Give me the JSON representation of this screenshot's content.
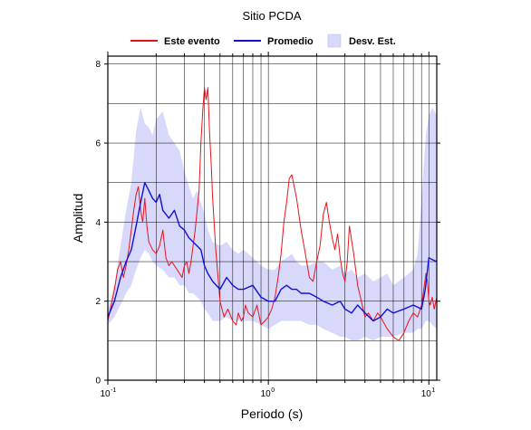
{
  "chart_data": {
    "type": "line",
    "title": "Sitio PCDA",
    "xlabel": "Periodo (s)",
    "ylabel": "Amplitud",
    "xscale": "log",
    "xlim": [
      0.1,
      11.2
    ],
    "ylim": [
      0,
      8.2
    ],
    "xticks": [
      {
        "value": 0.1,
        "base": "10",
        "exp": "-1"
      },
      {
        "value": 1,
        "base": "10",
        "exp": "0"
      },
      {
        "value": 10,
        "base": "10",
        "exp": "1"
      }
    ],
    "yticks": [
      "0",
      "2",
      "4",
      "6",
      "8"
    ],
    "grid": true,
    "legend_position": "top",
    "legend": {
      "event_label": "Este evento",
      "mean_label": "Promedio",
      "std_label": "Desv. Est."
    },
    "colors": {
      "event": "#e8141c",
      "mean": "#1010d8",
      "std_fill": "#d8d8fa"
    },
    "series": [
      {
        "name": "Este evento",
        "x": [
          0.1,
          0.105,
          0.11,
          0.115,
          0.12,
          0.125,
          0.13,
          0.135,
          0.14,
          0.145,
          0.15,
          0.155,
          0.16,
          0.165,
          0.17,
          0.175,
          0.18,
          0.19,
          0.2,
          0.21,
          0.22,
          0.23,
          0.24,
          0.25,
          0.27,
          0.29,
          0.3,
          0.31,
          0.32,
          0.33,
          0.35,
          0.37,
          0.38,
          0.39,
          0.4,
          0.41,
          0.42,
          0.43,
          0.44,
          0.45,
          0.47,
          0.5,
          0.53,
          0.56,
          0.6,
          0.63,
          0.65,
          0.68,
          0.7,
          0.72,
          0.75,
          0.8,
          0.85,
          0.9,
          0.95,
          1.0,
          1.05,
          1.1,
          1.15,
          1.2,
          1.25,
          1.3,
          1.35,
          1.4,
          1.45,
          1.5,
          1.6,
          1.7,
          1.8,
          1.9,
          2.0,
          2.1,
          2.2,
          2.3,
          2.4,
          2.5,
          2.6,
          2.7,
          2.8,
          2.9,
          3.0,
          3.1,
          3.2,
          3.4,
          3.6,
          3.8,
          4.0,
          4.2,
          4.5,
          4.8,
          5.0,
          5.5,
          6.0,
          6.5,
          7.0,
          7.5,
          8.0,
          8.5,
          9.0,
          9.3,
          9.6,
          9.8,
          10.0,
          10.2,
          10.5,
          10.8,
          11.2
        ],
        "values": [
          1.5,
          1.9,
          2.3,
          2.8,
          3.0,
          2.6,
          2.9,
          3.3,
          3.8,
          4.3,
          4.7,
          4.9,
          4.3,
          4.0,
          4.6,
          3.9,
          3.5,
          3.3,
          3.2,
          3.4,
          3.8,
          3.1,
          2.9,
          3.0,
          2.8,
          2.6,
          2.9,
          3.0,
          2.7,
          3.0,
          3.8,
          4.8,
          6.0,
          6.8,
          7.4,
          7.1,
          7.4,
          6.3,
          5.5,
          4.6,
          3.3,
          2.0,
          1.6,
          1.8,
          1.5,
          1.4,
          1.7,
          1.5,
          1.6,
          1.9,
          1.7,
          1.6,
          1.9,
          1.4,
          1.5,
          1.6,
          1.8,
          2.1,
          2.6,
          3.2,
          4.0,
          4.5,
          5.1,
          5.2,
          4.9,
          4.6,
          3.8,
          3.2,
          2.6,
          2.5,
          3.0,
          3.4,
          4.2,
          4.5,
          4.0,
          3.6,
          3.3,
          3.7,
          3.1,
          2.7,
          2.5,
          3.0,
          3.9,
          3.2,
          2.4,
          2.0,
          1.6,
          1.7,
          1.5,
          1.7,
          1.6,
          1.3,
          1.1,
          1.0,
          1.2,
          1.5,
          1.7,
          1.6,
          1.9,
          2.3,
          2.7,
          2.5,
          2.0,
          1.9,
          2.1,
          1.8,
          2.1
        ]
      },
      {
        "name": "Promedio",
        "x": [
          0.1,
          0.11,
          0.12,
          0.13,
          0.14,
          0.15,
          0.16,
          0.17,
          0.18,
          0.19,
          0.2,
          0.21,
          0.22,
          0.24,
          0.26,
          0.28,
          0.3,
          0.32,
          0.34,
          0.36,
          0.38,
          0.4,
          0.42,
          0.45,
          0.5,
          0.55,
          0.6,
          0.65,
          0.7,
          0.8,
          0.9,
          1.0,
          1.1,
          1.2,
          1.3,
          1.4,
          1.5,
          1.6,
          1.8,
          2.0,
          2.2,
          2.5,
          2.8,
          3.0,
          3.3,
          3.6,
          4.0,
          4.5,
          5.0,
          5.5,
          6.0,
          7.0,
          8.0,
          9.0,
          9.5,
          10.0,
          10.5,
          11.2
        ],
        "values": [
          1.6,
          2.0,
          2.6,
          3.0,
          3.3,
          3.9,
          4.5,
          5.0,
          4.8,
          4.6,
          4.5,
          4.7,
          4.3,
          4.1,
          4.3,
          3.9,
          3.8,
          3.6,
          3.5,
          3.4,
          3.3,
          2.9,
          2.7,
          2.5,
          2.3,
          2.6,
          2.4,
          2.3,
          2.3,
          2.4,
          2.1,
          2.0,
          2.0,
          2.3,
          2.4,
          2.3,
          2.3,
          2.2,
          2.2,
          2.1,
          2.0,
          1.9,
          2.0,
          1.8,
          1.7,
          1.9,
          1.7,
          1.5,
          1.6,
          1.8,
          1.7,
          1.8,
          1.9,
          1.8,
          2.3,
          3.1,
          3.05,
          3.0
        ]
      }
    ],
    "std_band": {
      "name": "Desv. Est.",
      "x": [
        0.1,
        0.11,
        0.12,
        0.13,
        0.14,
        0.15,
        0.16,
        0.17,
        0.18,
        0.19,
        0.2,
        0.22,
        0.24,
        0.26,
        0.28,
        0.3,
        0.32,
        0.34,
        0.36,
        0.38,
        0.4,
        0.42,
        0.45,
        0.5,
        0.55,
        0.6,
        0.65,
        0.7,
        0.8,
        0.9,
        1.0,
        1.1,
        1.2,
        1.3,
        1.4,
        1.5,
        1.6,
        1.8,
        2.0,
        2.2,
        2.5,
        2.8,
        3.0,
        3.3,
        3.6,
        4.0,
        4.5,
        5.0,
        5.5,
        6.0,
        7.0,
        8.0,
        8.5,
        9.0,
        9.3,
        9.6,
        10.0,
        10.5,
        11.2
      ],
      "upper": [
        1.8,
        2.4,
        3.4,
        4.3,
        5.0,
        6.3,
        6.9,
        6.5,
        6.4,
        6.2,
        6.6,
        6.8,
        6.2,
        6.0,
        5.8,
        5.3,
        4.9,
        4.6,
        4.8,
        4.5,
        4.2,
        3.8,
        3.5,
        3.4,
        3.5,
        3.3,
        3.2,
        3.3,
        3.1,
        2.9,
        2.8,
        2.8,
        3.0,
        3.1,
        3.2,
        3.0,
        2.9,
        2.9,
        3.0,
        3.0,
        2.8,
        2.9,
        2.7,
        2.8,
        2.6,
        2.7,
        2.5,
        2.6,
        2.7,
        2.4,
        2.6,
        2.8,
        3.2,
        4.5,
        5.5,
        6.2,
        6.7,
        6.9,
        6.7
      ],
      "lower": [
        1.4,
        1.6,
        1.9,
        2.2,
        2.4,
        2.8,
        3.1,
        3.3,
        3.2,
        3.0,
        2.9,
        2.8,
        2.6,
        2.6,
        2.4,
        2.4,
        2.2,
        2.2,
        2.1,
        2.0,
        1.8,
        1.7,
        1.5,
        1.5,
        1.6,
        1.5,
        1.5,
        1.5,
        1.5,
        1.4,
        1.3,
        1.4,
        1.5,
        1.5,
        1.5,
        1.5,
        1.5,
        1.4,
        1.4,
        1.3,
        1.2,
        1.1,
        1.1,
        1.0,
        1.0,
        1.1,
        1.0,
        1.1,
        1.1,
        1.1,
        1.2,
        1.2,
        1.3,
        1.3,
        1.4,
        1.5,
        1.5,
        1.4,
        1.3
      ]
    }
  }
}
